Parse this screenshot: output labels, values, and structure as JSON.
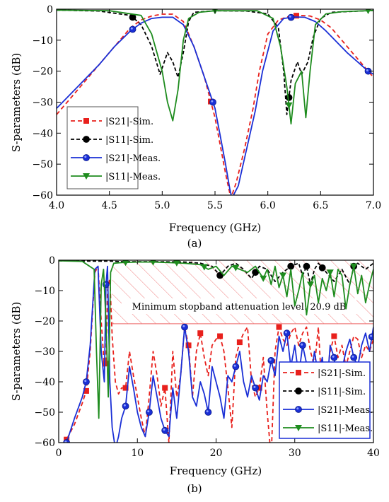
{
  "colors": {
    "sim_s21": "#e8201c",
    "sim_s11": "#000000",
    "meas_s21": "#1a2fd6",
    "meas_s11": "#1e8c1e",
    "hatch": "#f08080"
  },
  "chart_data": [
    {
      "type": "line",
      "caption": "(a)",
      "xlabel": "Frequency (GHz)",
      "ylabel": "S-parameters (dB)",
      "xlim": [
        4.0,
        7.0
      ],
      "ylim": [
        -60,
        0
      ],
      "xticks": [
        4.0,
        4.5,
        5.0,
        5.5,
        6.0,
        6.5,
        7.0
      ],
      "xtick_labels": [
        "4.0",
        "4.5",
        "5.0",
        "5.5",
        "6.0",
        "6.5",
        "7.0"
      ],
      "yticks": [
        0,
        -10,
        -20,
        -30,
        -40,
        -50,
        -60
      ],
      "ytick_labels": [
        "0",
        "−10",
        "−20",
        "−30",
        "−40",
        "−50",
        "−60"
      ],
      "legend_position": "bottom-left",
      "series": [
        {
          "name": "|S21|-Sim.",
          "color_key": "sim_s21",
          "dash": "6,4",
          "marker": "square",
          "markers_x": [
            5.46,
            6.27
          ],
          "x": [
            4.0,
            4.2,
            4.4,
            4.55,
            4.7,
            4.8,
            4.9,
            5.0,
            5.1,
            5.2,
            5.3,
            5.4,
            5.5,
            5.55,
            5.6,
            5.65,
            5.7,
            5.78,
            5.86,
            5.92,
            6.0,
            6.1,
            6.2,
            6.3,
            6.4,
            6.5,
            6.6,
            6.7,
            6.8,
            6.9,
            7.0
          ],
          "y": [
            -34,
            -26,
            -18,
            -12,
            -6,
            -3.5,
            -2.2,
            -1.6,
            -1.6,
            -4,
            -12,
            -22,
            -35,
            -44,
            -53,
            -61,
            -56,
            -45,
            -32,
            -20,
            -8,
            -3.5,
            -2.3,
            -2,
            -2.2,
            -3.5,
            -6,
            -10,
            -14,
            -18,
            -22
          ]
        },
        {
          "name": "|S11|-Sim.",
          "color_key": "sim_s11",
          "dash": "5,3",
          "marker": "circle",
          "markers_x": [
            4.72,
            6.2
          ],
          "x": [
            4.0,
            4.4,
            4.7,
            4.8,
            4.9,
            4.98,
            5.05,
            5.1,
            5.15,
            5.2,
            5.25,
            5.3,
            5.5,
            5.8,
            6.0,
            6.1,
            6.15,
            6.18,
            6.22,
            6.28,
            6.32,
            6.38,
            6.43,
            6.5,
            6.6,
            7.0
          ],
          "y": [
            -0.3,
            -0.6,
            -2,
            -5,
            -12,
            -21,
            -14,
            -17,
            -22,
            -14,
            -4,
            -1,
            -0.5,
            -0.6,
            -1.5,
            -6,
            -20,
            -34,
            -23,
            -17,
            -21,
            -17,
            -9,
            -3,
            -1,
            -0.4
          ]
        },
        {
          "name": "|S21|-Meas.",
          "color_key": "meas_s21",
          "dash": "",
          "marker": "circle",
          "markers_x": [
            4.72,
            5.48,
            6.22,
            6.95
          ],
          "x": [
            4.0,
            4.2,
            4.4,
            4.55,
            4.7,
            4.8,
            4.9,
            5.0,
            5.1,
            5.2,
            5.3,
            5.4,
            5.5,
            5.55,
            5.6,
            5.64,
            5.66,
            5.72,
            5.8,
            5.88,
            5.95,
            6.05,
            6.15,
            6.25,
            6.35,
            6.45,
            6.55,
            6.65,
            6.75,
            6.85,
            6.95,
            7.0
          ],
          "y": [
            -32,
            -25,
            -18,
            -12,
            -7,
            -4.5,
            -3,
            -2.6,
            -2.6,
            -5,
            -12,
            -22,
            -32,
            -41,
            -50,
            -58,
            -61,
            -57,
            -45,
            -33,
            -20,
            -7,
            -3,
            -2.5,
            -2.6,
            -4,
            -7,
            -10.5,
            -14,
            -17,
            -20,
            -21
          ]
        },
        {
          "name": "|S11|-Meas.",
          "color_key": "meas_s11",
          "dash": "",
          "marker": "triangle-down",
          "markers_x": [
            5.5,
            6.2,
            6.95
          ],
          "x": [
            4.0,
            4.5,
            4.8,
            4.9,
            5.0,
            5.05,
            5.1,
            5.15,
            5.2,
            5.25,
            5.35,
            5.5,
            5.9,
            6.05,
            6.12,
            6.18,
            6.22,
            6.26,
            6.32,
            6.36,
            6.4,
            6.45,
            6.55,
            6.7,
            7.0
          ],
          "y": [
            -0.3,
            -0.5,
            -2,
            -8,
            -20,
            -30,
            -36,
            -26,
            -10,
            -3,
            -1,
            -0.5,
            -0.5,
            -3,
            -12,
            -25,
            -37,
            -24,
            -20,
            -35,
            -20,
            -5,
            -1.5,
            -0.8,
            -0.4
          ]
        }
      ]
    },
    {
      "type": "line",
      "caption": "(b)",
      "xlabel": "Frequency (GHz)",
      "ylabel": "S-parameters (dB)",
      "xlim": [
        0,
        40
      ],
      "ylim": [
        -60,
        0
      ],
      "xticks": [
        0,
        10,
        20,
        30,
        40
      ],
      "xtick_labels": [
        "0",
        "10",
        "20",
        "30",
        "40"
      ],
      "yticks": [
        0,
        -10,
        -20,
        -30,
        -40,
        -50,
        -60
      ],
      "ytick_labels": [
        "0",
        "−10",
        "−20",
        "−30",
        "−40",
        "−50",
        "−60"
      ],
      "annotation": "Minimum stopband attenuation level: 20.9 dB",
      "stopband_level_db": -20.9,
      "stopband_x_start": 6.8,
      "legend_position": "bottom-right",
      "series": [
        {
          "name": "|S21|-Sim.",
          "color_key": "sim_s21",
          "dash": "6,4",
          "marker": "square",
          "markers_x": [
            1,
            3.5,
            6,
            8.5,
            13.5,
            16.5,
            18,
            20.5,
            23,
            25.5,
            28,
            32.5,
            35
          ],
          "x": [
            0,
            1,
            2,
            3,
            3.5,
            4,
            4.6,
            5,
            5.4,
            5.8,
            6,
            6.2,
            6.5,
            6.8,
            7.2,
            7.6,
            8,
            8.5,
            9,
            9.5,
            10,
            10.5,
            11,
            11.5,
            12,
            12.5,
            13,
            13.5,
            14,
            14.5,
            15,
            15.5,
            16,
            16.5,
            17,
            17.5,
            18,
            18.5,
            19,
            19.5,
            20,
            20.5,
            21,
            21.5,
            22,
            22.5,
            23,
            23.5,
            24,
            24.5,
            25,
            25.5,
            26,
            26.5,
            27,
            27.5,
            28,
            28.5,
            29,
            29.5,
            30,
            30.5,
            31,
            31.5,
            32,
            32.5,
            33,
            33.5,
            34,
            34.5,
            35,
            35.5,
            36,
            36.5,
            37,
            37.5,
            38,
            38.5,
            39,
            39.5,
            40
          ],
          "y": [
            -65,
            -59,
            -54,
            -47,
            -43,
            -30,
            -4,
            -2,
            -20,
            -35,
            -34,
            -10,
            -6,
            -25,
            -40,
            -44,
            -42,
            -42,
            -30,
            -38,
            -45,
            -52,
            -58,
            -45,
            -30,
            -38,
            -48,
            -42,
            -60,
            -30,
            -45,
            -38,
            -22,
            -28,
            -45,
            -30,
            -24,
            -32,
            -38,
            -28,
            -26,
            -25,
            -30,
            -42,
            -55,
            -32,
            -27,
            -24,
            -22,
            -40,
            -45,
            -42,
            -32,
            -50,
            -65,
            -30,
            -22,
            -26,
            -28,
            -24,
            -22,
            -28,
            -24,
            -22,
            -30,
            -35,
            -22,
            -45,
            -40,
            -30,
            -25,
            -32,
            -28,
            -35,
            -30,
            -25,
            -26,
            -32,
            -28,
            -30,
            -26
          ]
        },
        {
          "name": "|S11|-Sim.",
          "color_key": "sim_s11",
          "dash": "5,3",
          "marker": "circle",
          "markers_x": [
            20.5,
            25,
            29.5,
            31.5,
            33.5,
            37.5
          ],
          "x": [
            0,
            4,
            6.5,
            8,
            12,
            16,
            18,
            19.5,
            20.5,
            21.5,
            22.5,
            23.5,
            24.5,
            25.5,
            26.5,
            27.5,
            28.5,
            29.5,
            30.5,
            31,
            31.5,
            32,
            32.5,
            33,
            34,
            35,
            36,
            37,
            37.5,
            38,
            39,
            40
          ],
          "y": [
            -0.2,
            -0.3,
            -0.3,
            -0.5,
            -0.5,
            -0.6,
            -1,
            -2,
            -5,
            -2,
            -1,
            -3,
            -6,
            -2,
            -3,
            -7,
            -4,
            -2,
            -1,
            -5,
            -2,
            -8,
            -3,
            -1,
            -4,
            -7,
            -3,
            -8,
            -2,
            -1,
            -3,
            -1
          ]
        },
        {
          "name": "|S21|-Meas.",
          "color_key": "meas_s21",
          "dash": "",
          "marker": "circle",
          "markers_x": [
            1,
            3.5,
            6,
            8.5,
            11.5,
            13.5,
            16,
            19,
            22.5,
            25,
            27,
            29,
            31,
            33,
            35,
            37.5,
            39.8
          ],
          "x": [
            0,
            1,
            2,
            3,
            3.5,
            4,
            4.6,
            5,
            5.4,
            5.8,
            6,
            6.2,
            6.5,
            6.8,
            7.2,
            7.6,
            8,
            8.5,
            9,
            9.5,
            10,
            10.5,
            11,
            11.5,
            12,
            12.5,
            13,
            13.5,
            14,
            14.5,
            15,
            15.5,
            16,
            16.5,
            17,
            17.5,
            18,
            18.5,
            19,
            19.5,
            20,
            20.5,
            21,
            21.5,
            22,
            22.5,
            23,
            23.5,
            24,
            24.5,
            25,
            25.5,
            26,
            26.5,
            27,
            27.5,
            28,
            28.5,
            29,
            29.5,
            30,
            30.5,
            31,
            31.5,
            32,
            32.5,
            33,
            33.5,
            34,
            34.5,
            35,
            35.5,
            36,
            36.5,
            37,
            37.5,
            38,
            38.5,
            39,
            39.5,
            40
          ],
          "y": [
            -65,
            -60,
            -52,
            -45,
            -40,
            -28,
            -3,
            -2,
            -30,
            -40,
            -8,
            -2,
            -40,
            -55,
            -62,
            -58,
            -52,
            -48,
            -35,
            -42,
            -50,
            -55,
            -58,
            -50,
            -38,
            -45,
            -52,
            -56,
            -58,
            -42,
            -52,
            -38,
            -22,
            -30,
            -45,
            -48,
            -40,
            -44,
            -50,
            -35,
            -40,
            -45,
            -52,
            -38,
            -40,
            -35,
            -30,
            -40,
            -45,
            -38,
            -42,
            -46,
            -38,
            -40,
            -33,
            -38,
            -25,
            -30,
            -24,
            -35,
            -28,
            -38,
            -28,
            -34,
            -40,
            -30,
            -38,
            -32,
            -45,
            -28,
            -32,
            -42,
            -36,
            -30,
            -26,
            -32,
            -35,
            -28,
            -24,
            -30,
            -22
          ]
        },
        {
          "name": "|S11|-Meas.",
          "color_key": "meas_s11",
          "dash": "",
          "marker": "triangle-down",
          "markers_x": [
            8.5,
            12,
            15,
            18.5,
            22.5,
            26,
            28.5,
            32,
            34.5,
            37.5
          ],
          "x": [
            0,
            3,
            4.5,
            4.8,
            5.1,
            5.4,
            5.7,
            6.0,
            6.3,
            6.6,
            7,
            8,
            10,
            12,
            14,
            16,
            18,
            19,
            20,
            21,
            22,
            23,
            24,
            25,
            26,
            26.5,
            27,
            27.5,
            28,
            28.5,
            29,
            29.5,
            30,
            30.5,
            31,
            31.5,
            32,
            32.5,
            33,
            33.5,
            34,
            34.5,
            35,
            35.5,
            36,
            36.5,
            37,
            37.5,
            38,
            38.5,
            39,
            39.5,
            40
          ],
          "y": [
            -0.2,
            -0.4,
            -3,
            -30,
            -52,
            -8,
            -3,
            -20,
            -45,
            -4,
            -1,
            -0.8,
            -0.6,
            -0.6,
            -0.8,
            -1,
            -1.5,
            -3,
            -2,
            -5,
            -2,
            -3,
            -4,
            -2,
            -6,
            -3,
            -8,
            -2,
            -9,
            -5,
            -12,
            -3,
            -15,
            -10,
            -4,
            -18,
            -8,
            -5,
            -14,
            -6,
            -10,
            -4,
            -12,
            -3,
            -5,
            -16,
            -8,
            -2,
            -11,
            -5,
            -14,
            -8,
            -3
          ]
        }
      ]
    }
  ]
}
